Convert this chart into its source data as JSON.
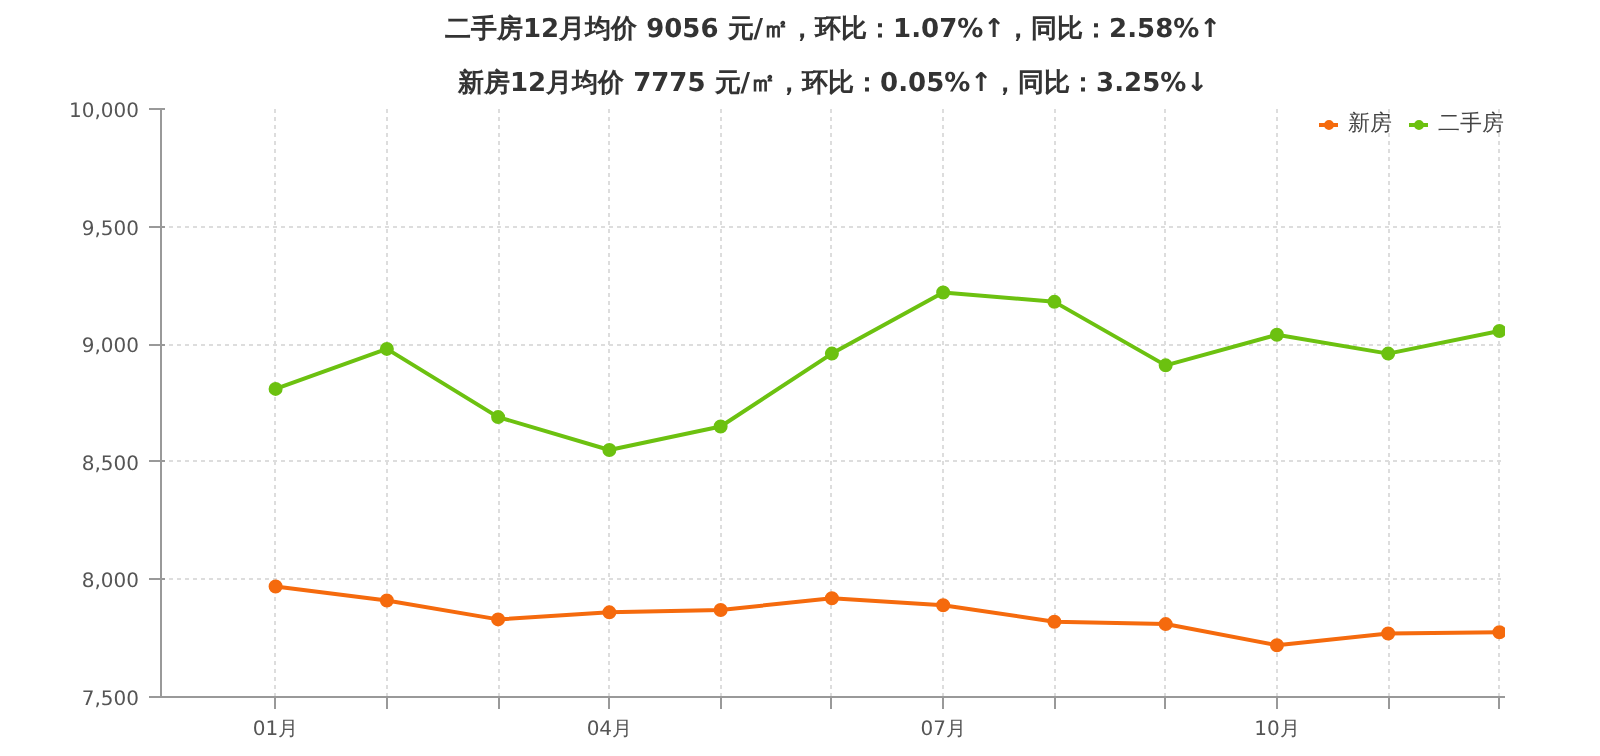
{
  "chart_data": {
    "type": "line",
    "title": "二手房12月均价 9056 元/㎡，环比：1.07%↑，同比：2.58%↑",
    "subtitle": "新房12月均价 7775 元/㎡，环比：0.05%↑，同比：3.25%↓",
    "categories": [
      "01月",
      null,
      null,
      "04月",
      null,
      null,
      "07月",
      null,
      null,
      "10月",
      null,
      null
    ],
    "series": [
      {
        "name": "新房",
        "color": "#f56a0d",
        "values": [
          7970,
          7910,
          7830,
          7860,
          7870,
          7920,
          7890,
          7820,
          7810,
          7720,
          7770,
          7775
        ]
      },
      {
        "name": "二手房",
        "color": "#6cc110",
        "values": [
          8810,
          8980,
          8690,
          8550,
          8650,
          8960,
          9220,
          9180,
          8910,
          9040,
          8960,
          9056
        ]
      }
    ],
    "ylim": [
      7500,
      10000
    ],
    "yticks": [
      {
        "value": 7500,
        "label": "7,500"
      },
      {
        "value": 8000,
        "label": "8,000"
      },
      {
        "value": 8500,
        "label": "8,500"
      },
      {
        "value": 9000,
        "label": "9,000"
      },
      {
        "value": 9500,
        "label": "9,500"
      },
      {
        "value": 10000,
        "label": "10,000"
      }
    ],
    "grid": true,
    "legend": "top right",
    "marker": "circle",
    "line_style": "solid"
  }
}
